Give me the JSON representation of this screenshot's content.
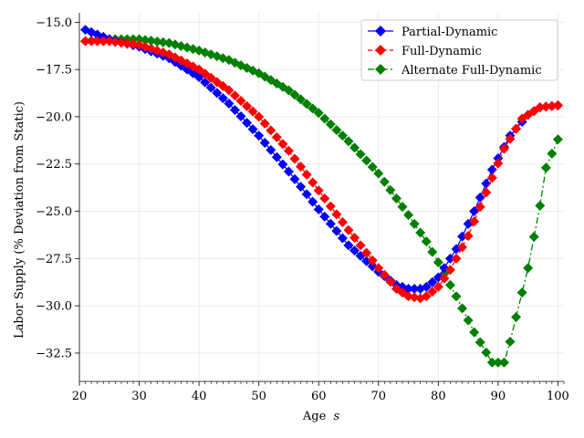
{
  "chart_data": {
    "type": "line",
    "title": "",
    "xlabel": "Age",
    "xlabel_var": "s",
    "ylabel": "Labor Supply (% Deviation from Static)",
    "xlim": [
      20,
      101
    ],
    "ylim": [
      -34,
      -14.5
    ],
    "x_ticks": [
      20,
      30,
      40,
      50,
      60,
      70,
      80,
      90,
      100
    ],
    "y_ticks": [
      -15.0,
      -17.5,
      -20.0,
      -22.5,
      -25.0,
      -27.5,
      -30.0,
      -32.5
    ],
    "x_tick_labels": [
      "20",
      "30",
      "40",
      "50",
      "60",
      "70",
      "80",
      "90",
      "100"
    ],
    "y_tick_labels": [
      "−15.0",
      "−17.5",
      "−20.0",
      "−22.5",
      "−25.0",
      "−27.5",
      "−30.0",
      "−32.5"
    ],
    "grid": true,
    "legend_placement": "top-right",
    "colors": {
      "partial": "#0000ff",
      "full": "#ff0000",
      "alternate": "#008000"
    },
    "series": [
      {
        "name": "Partial-Dynamic",
        "color": "#0000ff",
        "linestyle": "solid",
        "marker": "diamond",
        "knots_x": [
          21,
          25,
          30,
          35,
          40,
          45,
          50,
          55,
          60,
          65,
          70,
          73,
          75,
          77,
          78,
          80,
          83,
          86,
          89,
          92,
          95,
          97,
          100
        ],
        "knots_y": [
          -15.4,
          -15.9,
          -16.3,
          -16.9,
          -17.9,
          -19.3,
          -21.0,
          -22.9,
          -24.9,
          -26.8,
          -28.2,
          -28.9,
          -29.1,
          -29.1,
          -29.0,
          -28.5,
          -27.0,
          -25.0,
          -22.8,
          -21.0,
          -19.9,
          -19.5,
          -19.4
        ]
      },
      {
        "name": "Full-Dynamic",
        "color": "#ff0000",
        "linestyle": "dashed",
        "marker": "diamond",
        "knots_x": [
          21,
          25,
          30,
          35,
          40,
          45,
          50,
          55,
          60,
          65,
          70,
          73,
          75,
          77,
          78,
          80,
          82,
          85,
          88,
          91,
          94,
          97,
          100
        ],
        "knots_y": [
          -16.0,
          -16.0,
          -16.2,
          -16.7,
          -17.5,
          -18.6,
          -20.0,
          -21.8,
          -23.9,
          -26.0,
          -28.0,
          -29.1,
          -29.5,
          -29.6,
          -29.5,
          -29.0,
          -28.1,
          -26.3,
          -24.0,
          -21.7,
          -20.1,
          -19.5,
          -19.4
        ]
      },
      {
        "name": "Alternate Full-Dynamic",
        "color": "#008000",
        "linestyle": "dashdot",
        "marker": "diamond",
        "knots_x": [
          21,
          25,
          30,
          35,
          40,
          45,
          50,
          55,
          60,
          65,
          70,
          75,
          78,
          80,
          83,
          86,
          89,
          91,
          92,
          93,
          95,
          97,
          98,
          100
        ],
        "knots_y": [
          -16.0,
          -15.9,
          -15.9,
          -16.1,
          -16.5,
          -17.0,
          -17.7,
          -18.6,
          -19.8,
          -21.3,
          -23.0,
          -25.2,
          -26.6,
          -27.7,
          -29.5,
          -31.4,
          -33.0,
          -33.0,
          -31.9,
          -30.6,
          -28.0,
          -24.7,
          -22.7,
          -21.2
        ]
      }
    ],
    "sample_x_start": 21,
    "sample_x_end": 100,
    "sample_x_step": 1
  }
}
